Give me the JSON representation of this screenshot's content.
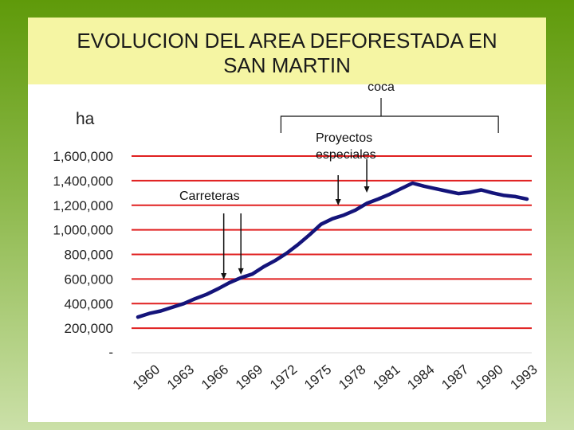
{
  "slide": {
    "title_line1": "EVOLUCION DEL AREA DEFORESTADA EN",
    "title_line2": "SAN MARTIN"
  },
  "chart_data": {
    "type": "line",
    "ylabel": "ha",
    "ylim": [
      0,
      1600000
    ],
    "y_ticks": [
      {
        "value": 0,
        "label": "-"
      },
      {
        "value": 200000,
        "label": "200,000"
      },
      {
        "value": 400000,
        "label": "400,000"
      },
      {
        "value": 600000,
        "label": "600,000"
      },
      {
        "value": 800000,
        "label": "800,000"
      },
      {
        "value": 1000000,
        "label": "1,000,000"
      },
      {
        "value": 1200000,
        "label": "1,200,000"
      },
      {
        "value": 1400000,
        "label": "1,400,000"
      },
      {
        "value": 1600000,
        "label": "1,600,000"
      }
    ],
    "x_tick_labels": [
      "1960",
      "1963",
      "1966",
      "1969",
      "1972",
      "1975",
      "1978",
      "1981",
      "1984",
      "1987",
      "1990",
      "1993"
    ],
    "grid": "horizontal",
    "colors": {
      "line": "#14147a",
      "grid": "#e02020"
    },
    "series": [
      {
        "x": [
          1960,
          1961,
          1962,
          1963,
          1964,
          1965,
          1966,
          1967,
          1968,
          1969,
          1970,
          1971,
          1972,
          1973,
          1974,
          1975,
          1976,
          1977,
          1978,
          1979,
          1980,
          1981,
          1982,
          1983,
          1984,
          1985,
          1986,
          1987,
          1988,
          1989,
          1990,
          1991,
          1992,
          1993,
          1994
        ],
        "values": [
          290000,
          320000,
          340000,
          370000,
          400000,
          440000,
          475000,
          520000,
          570000,
          610000,
          640000,
          700000,
          750000,
          810000,
          880000,
          960000,
          1045000,
          1090000,
          1120000,
          1160000,
          1215000,
          1250000,
          1290000,
          1335000,
          1380000,
          1355000,
          1335000,
          1315000,
          1295000,
          1305000,
          1325000,
          1300000,
          1280000,
          1270000,
          1250000
        ]
      }
    ],
    "annotations": {
      "carreteras": {
        "label": "Carreteras",
        "years": [
          1967.5,
          1969
        ]
      },
      "proyectos": {
        "label_line1": "Proyectos",
        "label_line2": "especiales",
        "years": [
          1977.5,
          1980
        ]
      },
      "coca": {
        "label": "coca",
        "range": [
          1972.5,
          1991.5
        ]
      }
    }
  }
}
